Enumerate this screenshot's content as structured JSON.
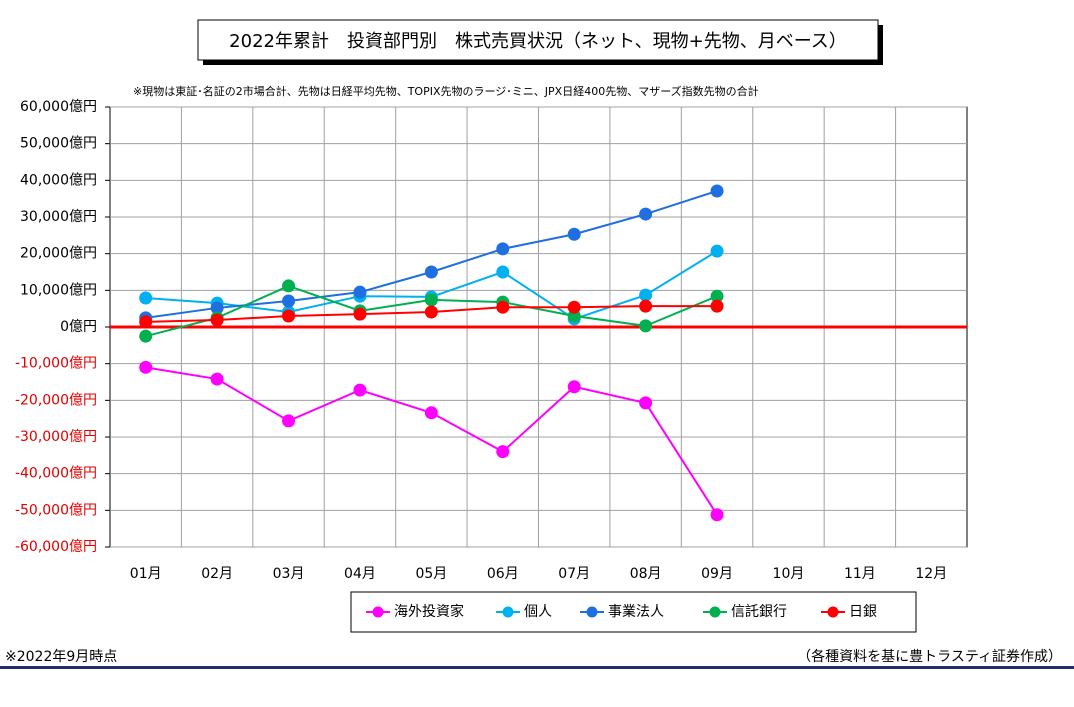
{
  "chart_data": {
    "type": "line",
    "title": "2022年累計　投資部門別　株式売買状況（ネット、現物+先物、月ベース）",
    "subtitle": "※現物は東証･名証の2市場合計、先物は日経平均先物、TOPIX先物のラージ･ミニ、JPX日経400先物、マザーズ指数先物の合計",
    "footnote_left": "※2022年9月時点",
    "footnote_right": "（各種資料を基に豊トラスティ証券作成）",
    "categories": [
      "01月",
      "02月",
      "03月",
      "04月",
      "05月",
      "06月",
      "07月",
      "08月",
      "09月",
      "10月",
      "11月",
      "12月"
    ],
    "series": [
      {
        "name": "海外投資家",
        "color": "#ff00ff",
        "values": [
          -11000,
          -14200,
          -25600,
          -17200,
          -23400,
          -34000,
          -16300,
          -20700,
          -51200,
          null,
          null,
          null
        ]
      },
      {
        "name": "個人",
        "color": "#00b0f0",
        "values": [
          7900,
          6500,
          4100,
          8400,
          8200,
          15000,
          2200,
          8700,
          20700,
          null,
          null,
          null
        ]
      },
      {
        "name": "事業法人",
        "color": "#1f6fe0",
        "values": [
          2500,
          5200,
          7100,
          9500,
          15000,
          21300,
          25300,
          30800,
          37100,
          null,
          null,
          null
        ]
      },
      {
        "name": "信託銀行",
        "color": "#00b050",
        "values": [
          -2500,
          2500,
          11200,
          4400,
          7400,
          6800,
          3000,
          300,
          8400,
          null,
          null,
          null
        ]
      },
      {
        "name": "日銀",
        "color": "#ff0000",
        "values": [
          1400,
          1900,
          3000,
          3500,
          4100,
          5400,
          5400,
          5700,
          5700,
          null,
          null,
          null
        ]
      }
    ],
    "ylim": [
      -60000,
      60000
    ],
    "yticks": [
      {
        "value": -60000,
        "label": "-60,000億円"
      },
      {
        "value": -50000,
        "label": "-50,000億円"
      },
      {
        "value": -40000,
        "label": "-40,000億円"
      },
      {
        "value": -30000,
        "label": "-30,000億円"
      },
      {
        "value": -20000,
        "label": "-20,000億円"
      },
      {
        "value": -10000,
        "label": "-10,000億円"
      },
      {
        "value": 0,
        "label": "0億円"
      },
      {
        "value": 10000,
        "label": "10,000億円"
      },
      {
        "value": 20000,
        "label": "20,000億円"
      },
      {
        "value": 30000,
        "label": "30,000億円"
      },
      {
        "value": 40000,
        "label": "40,000億円"
      },
      {
        "value": 50000,
        "label": "50,000億円"
      },
      {
        "value": 60000,
        "label": "60,000億円"
      }
    ],
    "negative_tick_color": "#e00000",
    "zero_line_color": "#ff0000",
    "grid": true
  }
}
